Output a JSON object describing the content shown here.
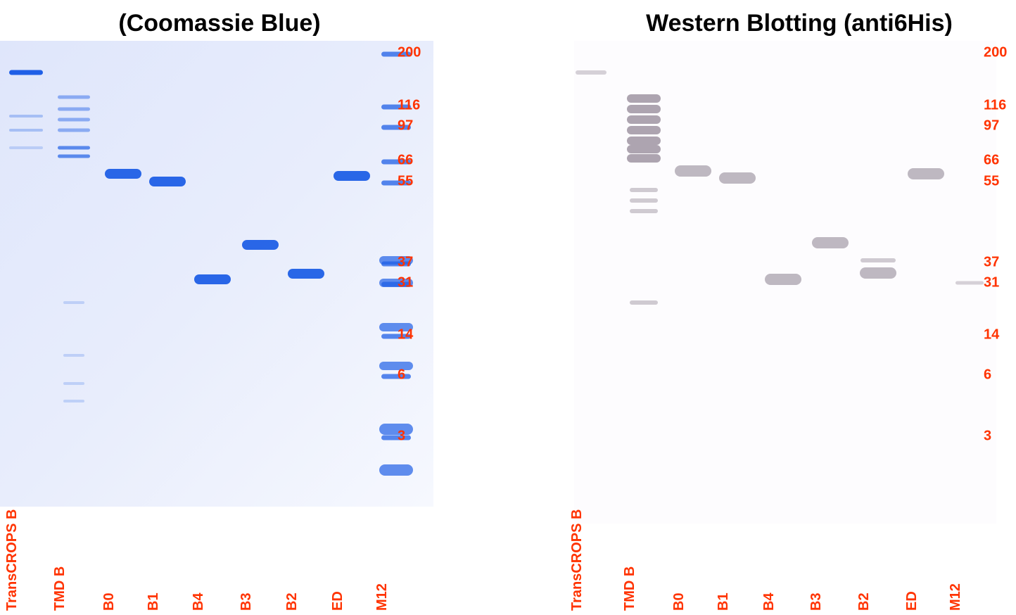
{
  "panels": [
    {
      "title": "(Coomassie Blue)",
      "markers": [
        "200",
        "116",
        "97",
        "66",
        "55",
        "37",
        "31",
        "14",
        "6",
        "3"
      ],
      "lanes": [
        "TransCROPS B",
        "TMD B",
        "B0",
        "B1",
        "B4",
        "B3",
        "B2",
        "ED",
        "M12"
      ]
    },
    {
      "title": "Western Blotting (anti6His)",
      "markers": [
        "200",
        "116",
        "97",
        "66",
        "55",
        "37",
        "31",
        "14",
        "6",
        "3"
      ],
      "lanes": [
        "TransCROPS B",
        "TMD B",
        "B0",
        "B1",
        "B4",
        "B3",
        "B2",
        "ED",
        "M12"
      ]
    }
  ]
}
